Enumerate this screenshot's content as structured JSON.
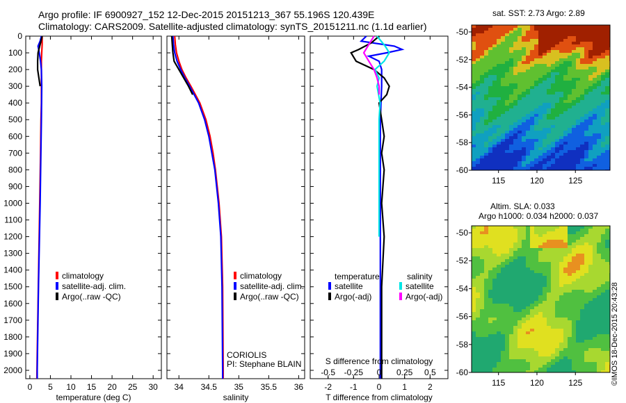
{
  "header": {
    "title_line1": "Argo profile: IF 6900927_152 12-Dec-2015 20151213_367 55.196S 120.439E",
    "title_line2": "Climatology: CARS2009. Satellite-adjusted climatology: synTS_20151211.nc (1.1d earlier)"
  },
  "credit": "©IMOS 18-Dec-2015 20:43:28",
  "colors": {
    "climatology": "#ff0000",
    "satellite": "#0000ff",
    "argo": "#000000",
    "sal_satellite": "#00e5e5",
    "sal_argo": "#ff00ff"
  },
  "chart_data": [
    {
      "type": "line",
      "id": "temperature",
      "xlabel": "temperature (deg C)",
      "xticks": [
        "0",
        "5",
        "10",
        "15",
        "20",
        "25",
        "30"
      ],
      "xlim": [
        -1,
        32
      ],
      "yticks": [
        "0",
        "100",
        "200",
        "300",
        "400",
        "500",
        "600",
        "700",
        "800",
        "900",
        "1000",
        "1100",
        "1200",
        "1300",
        "1400",
        "1500",
        "1600",
        "1700",
        "1800",
        "1900",
        "2000"
      ],
      "ylim": [
        0,
        2050
      ],
      "legend": [
        "climatology",
        "satellite-adj. clim.",
        "Argo(..raw -QC)"
      ],
      "series": [
        {
          "name": "climatology",
          "color": "#ff0000",
          "depth": [
            0,
            50,
            100,
            150,
            200,
            300,
            400,
            500,
            700,
            1000,
            1300,
            1600,
            1900,
            2050
          ],
          "values": [
            3.0,
            3.0,
            2.9,
            2.8,
            2.8,
            2.8,
            2.8,
            2.7,
            2.6,
            2.4,
            2.2,
            2.0,
            1.8,
            1.7
          ]
        },
        {
          "name": "satellite-adj. clim.",
          "color": "#0000ff",
          "depth": [
            0,
            30,
            60,
            100,
            150,
            200,
            300,
            500,
            1000,
            1500,
            2000,
            2050
          ],
          "values": [
            2.8,
            2.5,
            2.0,
            2.3,
            2.6,
            2.8,
            2.9,
            2.8,
            2.5,
            2.1,
            1.8,
            1.8
          ]
        },
        {
          "name": "Argo(..raw -QC)",
          "color": "#000000",
          "depth": [
            0,
            20,
            50,
            80,
            100,
            150,
            200,
            250,
            300
          ],
          "values": [
            3.0,
            2.8,
            2.5,
            2.2,
            2.0,
            1.9,
            1.9,
            2.2,
            2.5
          ]
        }
      ]
    },
    {
      "type": "line",
      "id": "salinity",
      "xlabel": "salinity",
      "xticks": [
        "34",
        "34.5",
        "35",
        "35.5",
        "36"
      ],
      "xlim": [
        33.8,
        36.1
      ],
      "ylim": [
        0,
        2050
      ],
      "legend": [
        "climatology",
        "satellite-adj. clim.",
        "Argo(..raw -QC)"
      ],
      "annotation": [
        "CORIOLIS",
        "PI: Stephane BLAIN"
      ],
      "series": [
        {
          "name": "climatology",
          "color": "#ff0000",
          "depth": [
            0,
            50,
            100,
            150,
            200,
            250,
            300,
            400,
            500,
            600,
            700,
            800,
            1000,
            1200,
            1500,
            2000,
            2050
          ],
          "values": [
            33.93,
            33.94,
            33.96,
            34.0,
            34.05,
            34.12,
            34.2,
            34.35,
            34.45,
            34.52,
            34.57,
            34.61,
            34.67,
            34.71,
            34.73,
            34.74,
            34.74
          ]
        },
        {
          "name": "satellite-adj. clim.",
          "color": "#0000ff",
          "depth": [
            0,
            50,
            100,
            150,
            200,
            250,
            300,
            400,
            500,
            600,
            700,
            800,
            1000,
            1200,
            1500,
            2000,
            2050
          ],
          "values": [
            33.9,
            33.91,
            33.93,
            33.97,
            34.03,
            34.1,
            34.18,
            34.33,
            34.43,
            34.5,
            34.55,
            34.6,
            34.66,
            34.7,
            34.72,
            34.73,
            34.73
          ]
        },
        {
          "name": "Argo(..raw -QC)",
          "color": "#000000",
          "depth": [
            0,
            50,
            100,
            150,
            200,
            250,
            300,
            350
          ],
          "values": [
            33.88,
            33.89,
            33.9,
            33.92,
            34.0,
            34.08,
            34.16,
            34.23
          ]
        }
      ]
    },
    {
      "type": "line",
      "id": "difference",
      "xlabel": "T difference from climatology",
      "xticks": [
        "-2",
        "-1",
        "0",
        "1",
        "2"
      ],
      "xlim": [
        -2.7,
        2.7
      ],
      "x2label": "S difference from climatology",
      "x2ticks": [
        "-0.5",
        "-0.25",
        "0",
        "0.25",
        "0.5"
      ],
      "x2lim": [
        -0.675,
        0.675
      ],
      "ylim": [
        0,
        2050
      ],
      "legend": {
        "temperature_header": "temperature",
        "salinity_header": "salinity",
        "temperature": [
          "satellite",
          "Argo(-adj)"
        ],
        "salinity": [
          "satellite",
          "Argo(-adj)"
        ]
      },
      "series": [
        {
          "name": "temperature satellite",
          "color": "#0000ff",
          "depth": [
            0,
            30,
            60,
            80,
            100,
            120,
            150,
            200,
            300,
            500,
            1000,
            1500,
            2050
          ],
          "values": [
            -0.5,
            -0.7,
            0.6,
            0.9,
            0.3,
            -0.4,
            0.0,
            0.1,
            0.1,
            0.05,
            0.05,
            0.05,
            0.05
          ]
        },
        {
          "name": "temperature Argo(-adj)",
          "color": "#000000",
          "depth": [
            0,
            40,
            80,
            100,
            150,
            200,
            250,
            300,
            350,
            400,
            500,
            600,
            700,
            800,
            1000,
            1200,
            1500,
            1900,
            2050
          ],
          "values": [
            0.0,
            -0.3,
            -0.8,
            -1.1,
            -0.9,
            -0.2,
            0.2,
            0.4,
            0.3,
            0.0,
            0.1,
            0.2,
            0.1,
            0.2,
            0.1,
            0.2,
            0.1,
            0.1,
            0.1
          ]
        },
        {
          "name": "salinity satellite",
          "color": "#00e5e5",
          "depth": [
            0,
            60,
            100,
            150,
            200,
            250,
            300,
            400,
            500,
            700,
            1000,
            1200
          ],
          "values": [
            -0.02,
            0.06,
            0.1,
            0.05,
            -0.04,
            0.0,
            -0.02,
            0.01,
            0.0,
            0.0,
            0.0,
            0.0
          ]
        },
        {
          "name": "salinity Argo(-adj)",
          "color": "#ff00ff",
          "depth": [
            0,
            50,
            100,
            150,
            200,
            250,
            300,
            350
          ],
          "values": [
            -0.05,
            -0.1,
            -0.15,
            -0.1,
            -0.05,
            -0.02,
            0.0,
            0.0
          ]
        }
      ]
    },
    {
      "type": "heatmap",
      "id": "sst_map",
      "title": "sat. SST: 2.73 Argo: 2.89",
      "xticks": [
        "115",
        "120",
        "125"
      ],
      "xlim": [
        111.5,
        129.5
      ],
      "yticks": [
        "-50",
        "-52",
        "-54",
        "-56",
        "-58",
        "-60"
      ],
      "ylim": [
        -60,
        -49.5
      ]
    },
    {
      "type": "heatmap",
      "id": "sla_map",
      "title": "Altim. SLA: 0.033",
      "subtitle": "Argo h1000: 0.034 h2000: 0.037",
      "xticks": [
        "115",
        "120",
        "125"
      ],
      "xlim": [
        111.5,
        129.5
      ],
      "yticks": [
        "-50",
        "-52",
        "-54",
        "-56",
        "-58",
        "-60"
      ],
      "ylim": [
        -60,
        -49.5
      ]
    }
  ]
}
